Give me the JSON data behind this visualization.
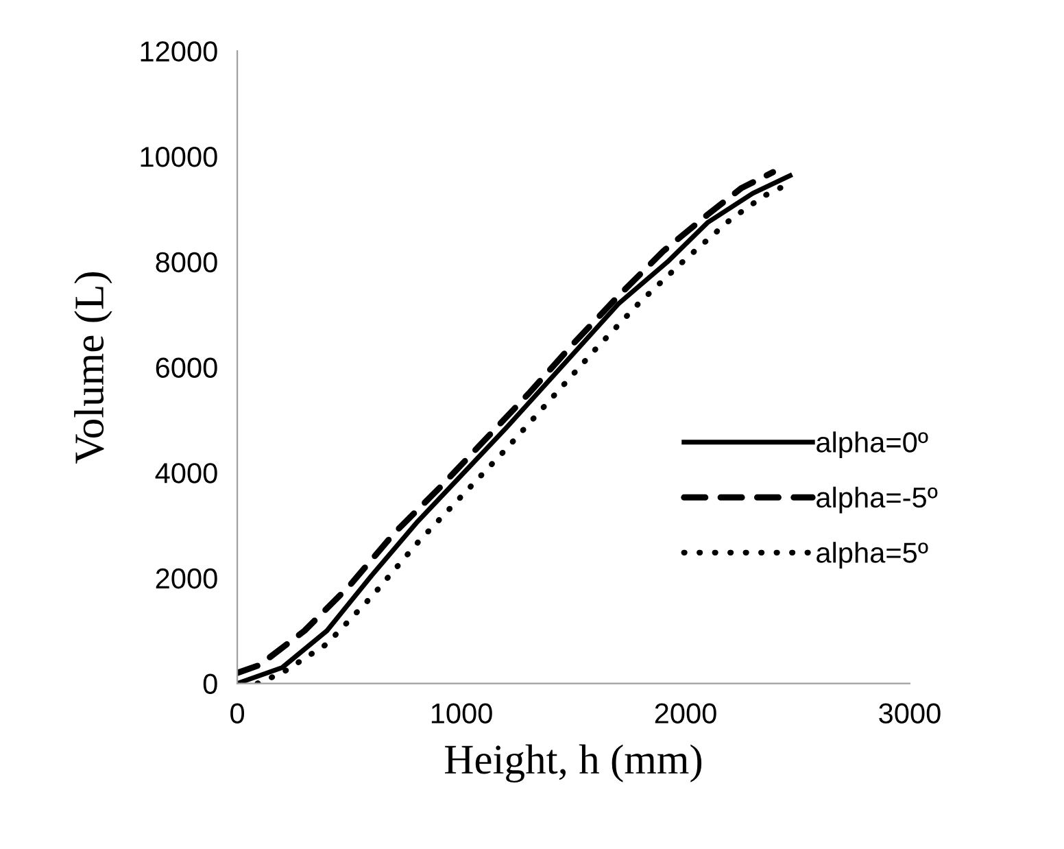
{
  "chart_data": {
    "type": "line",
    "xlabel": "Height, h (mm)",
    "ylabel": "Volume (L)",
    "xlim": [
      0,
      3000
    ],
    "xticks": [
      0,
      1000,
      2000,
      3000
    ],
    "ylim": [
      0,
      12000
    ],
    "yticks": [
      0,
      2000,
      4000,
      6000,
      8000,
      10000,
      12000
    ],
    "grid": false,
    "legend": "right",
    "marker": "none",
    "series": [
      {
        "name": "alpha=0º",
        "color": "#000000",
        "line_style": "solid",
        "x": [
          0,
          200,
          400,
          600,
          800,
          1000,
          1200,
          1445,
          1700,
          1920,
          2100,
          2300,
          2466
        ],
        "values": [
          0,
          300,
          1000,
          2050,
          3050,
          3950,
          4850,
          6000,
          7200,
          8000,
          8750,
          9300,
          9635
        ]
      },
      {
        "name": "alpha=-5º",
        "color": "#000000",
        "line_style": "dashed",
        "x": [
          0,
          100,
          300,
          500,
          700,
          900,
          1100,
          1300,
          1500,
          1700,
          1900,
          2100,
          2250,
          2390
        ],
        "values": [
          200,
          350,
          1000,
          1850,
          2850,
          3700,
          4600,
          5500,
          6450,
          7350,
          8200,
          8900,
          9400,
          9700
        ]
      },
      {
        "name": "alpha=5º",
        "color": "#000000",
        "line_style": "dotted",
        "x": [
          90,
          200,
          400,
          600,
          800,
          1000,
          1200,
          1400,
          1600,
          1800,
          2000,
          2200,
          2350,
          2460
        ],
        "values": [
          0,
          200,
          750,
          1650,
          2650,
          3550,
          4450,
          5400,
          6350,
          7250,
          8050,
          8800,
          9250,
          9480
        ]
      }
    ]
  }
}
